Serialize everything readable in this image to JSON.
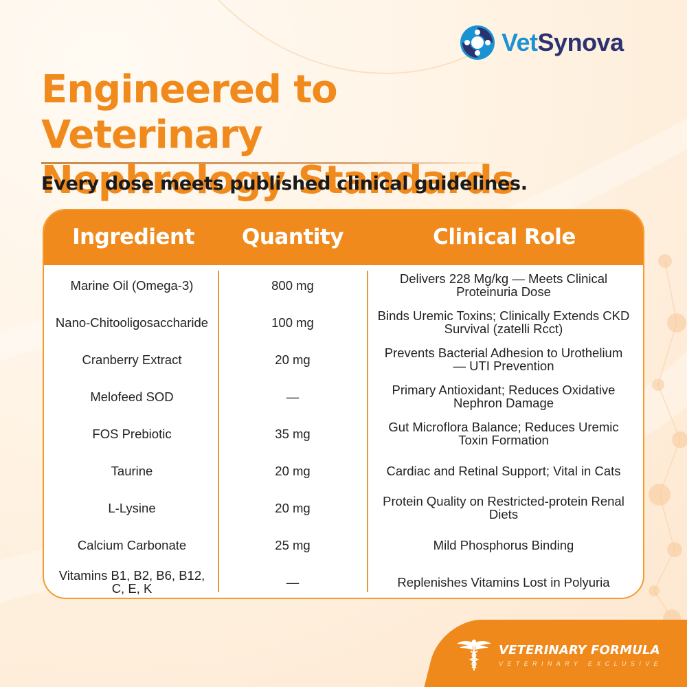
{
  "brand": {
    "name_part1": "Vet",
    "name_part2": "Synova",
    "logo_icon": "swirl-dots-logo-icon"
  },
  "headline": {
    "line1": "Engineered to Veterinary",
    "line2": "Nephrology Standards"
  },
  "subtitle": "Every dose meets published clinical guidelines.",
  "table": {
    "headers": [
      "Ingredient",
      "Quantity",
      "Clinical Role"
    ],
    "rows": [
      {
        "ingredient": "Marine Oil (Omega-3)",
        "quantity": "800 mg",
        "role": "Delivers 228 Mg/kg — Meets Clinical Proteinuria Dose"
      },
      {
        "ingredient": "Nano-Chitooligosaccharide",
        "quantity": "100 mg",
        "role": "Binds Uremic Toxins; Clinically Extends CKD Survival (zatelli Rcct)"
      },
      {
        "ingredient": "Cranberry Extract",
        "quantity": "20 mg",
        "role": "Prevents Bacterial Adhesion to Urothelium — UTI Prevention"
      },
      {
        "ingredient": "Melofeed SOD",
        "quantity": "—",
        "role": "Primary Antioxidant; Reduces Oxidative Nephron Damage"
      },
      {
        "ingredient": "FOS Prebiotic",
        "quantity": "35 mg",
        "role": "Gut Microflora Balance; Reduces Uremic Toxin Formation"
      },
      {
        "ingredient": "Taurine",
        "quantity": "20 mg",
        "role": "Cardiac and Retinal Support; Vital in Cats"
      },
      {
        "ingredient": "L-Lysine",
        "quantity": "20 mg",
        "role": "Protein Quality on Restricted-protein Renal Diets"
      },
      {
        "ingredient": "Calcium Carbonate",
        "quantity": "25 mg",
        "role": "Mild Phosphorus Binding"
      },
      {
        "ingredient": "Vitamins B1, B2, B6, B12, C, E, K",
        "quantity": "—",
        "role": "Replenishes Vitamins Lost in Polyuria"
      }
    ]
  },
  "badge": {
    "title": "VETERINARY FORMULA",
    "subtitle": "VETERINARY EXCLUSIVE",
    "icon": "caduceus-icon"
  },
  "colors": {
    "accent_orange": "#f08a1c",
    "brand_blue": "#1b93d2",
    "brand_navy": "#2b3270"
  }
}
